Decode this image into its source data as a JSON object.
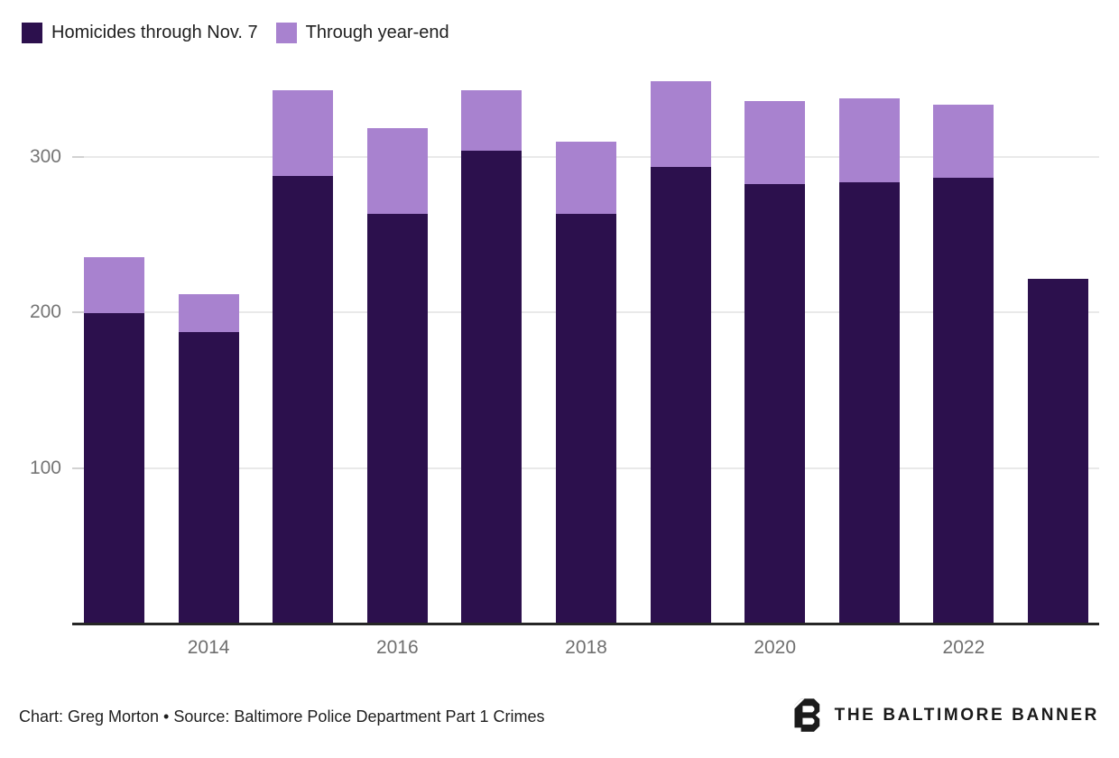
{
  "page": {
    "background": "#ffffff"
  },
  "legend": {
    "items": [
      {
        "label": "Homicides through Nov. 7",
        "color": "#2c104d"
      },
      {
        "label": "Through year-end",
        "color": "#a882cf"
      }
    ]
  },
  "chart_data": {
    "type": "bar",
    "stacked": true,
    "title": "",
    "xlabel": "",
    "ylabel": "",
    "ylim": [
      0,
      360
    ],
    "grid": "horizontal",
    "legend_position": "top-left",
    "y_gridlines": [
      100,
      200,
      300
    ],
    "y_tick_labels": [
      "100",
      "200",
      "300"
    ],
    "x_axis_tick_labels": [
      "2014",
      "2016",
      "2018",
      "2020",
      "2022"
    ],
    "series": [
      {
        "name": "Homicides through Nov. 7",
        "key": "through_nov_7",
        "color": "#2c104d"
      },
      {
        "name": "Through year-end",
        "key": "through_year_end",
        "color": "#a882cf"
      }
    ],
    "years": [
      {
        "year": "2013",
        "through_nov_7": 199,
        "through_year_end": 235
      },
      {
        "year": "2014",
        "through_nov_7": 187,
        "through_year_end": 211
      },
      {
        "year": "2015",
        "through_nov_7": 287,
        "through_year_end": 342
      },
      {
        "year": "2016",
        "through_nov_7": 263,
        "through_year_end": 318
      },
      {
        "year": "2017",
        "through_nov_7": 303,
        "through_year_end": 342
      },
      {
        "year": "2018",
        "through_nov_7": 263,
        "through_year_end": 309
      },
      {
        "year": "2019",
        "through_nov_7": 293,
        "through_year_end": 348
      },
      {
        "year": "2020",
        "through_nov_7": 282,
        "through_year_end": 335
      },
      {
        "year": "2021",
        "through_nov_7": 283,
        "through_year_end": 337
      },
      {
        "year": "2022",
        "through_nov_7": 286,
        "through_year_end": 333
      },
      {
        "year": "2023",
        "through_nov_7": 221,
        "through_year_end": null
      }
    ]
  },
  "footer": {
    "credit": "Chart: Greg Morton • Source: Baltimore Police Department Part 1 Crimes",
    "logo_text": "THE BALTIMORE BANNER"
  },
  "colors": {
    "dark_purple": "#2c104d",
    "light_purple": "#a882cf",
    "gridline": "#e9e9e9",
    "axis_line": "#262626",
    "tick_text": "#757575",
    "footer_text": "#1d1d1d",
    "brand": "#1a1a1a"
  }
}
